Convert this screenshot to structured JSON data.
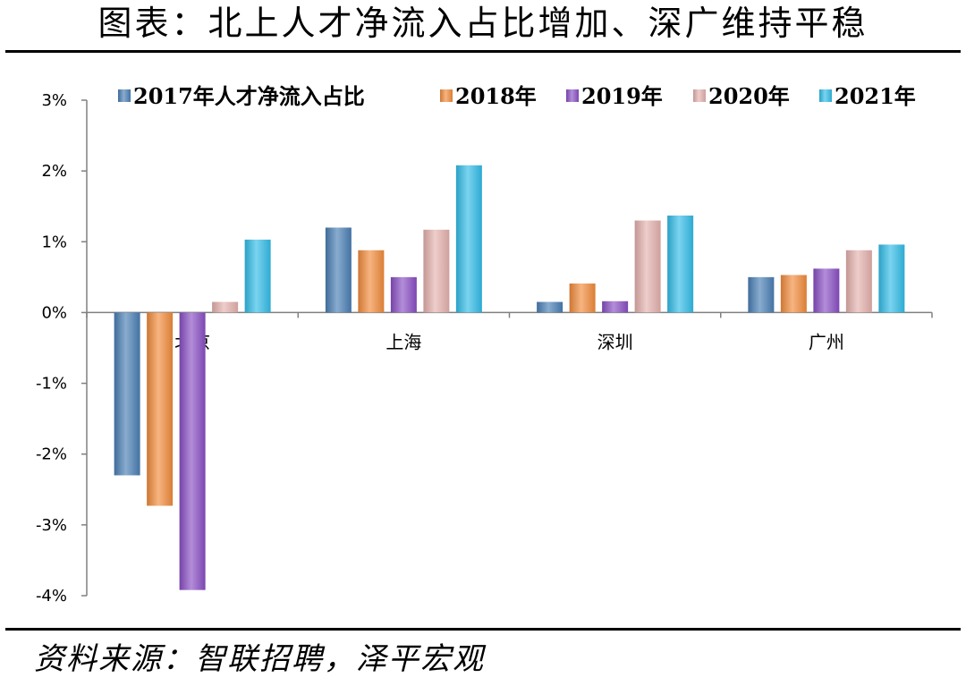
{
  "title": "图表：北上人才净流入占比增加、深广维持平稳",
  "source": "资料来源：智联招聘，泽平宏观",
  "chart_data": {
    "type": "bar",
    "categories": [
      "北京",
      "上海",
      "深圳",
      "广州"
    ],
    "series": [
      {
        "name": "2017年人才净流入占比",
        "values": [
          -2.3,
          1.2,
          0.15,
          0.5
        ],
        "color": "#4a7fb5"
      },
      {
        "name": "2018年",
        "values": [
          -2.73,
          0.88,
          0.41,
          0.53
        ],
        "color": "#f28c3c"
      },
      {
        "name": "2019年",
        "values": [
          -3.92,
          0.5,
          0.16,
          0.62
        ],
        "color": "#8a4fc4"
      },
      {
        "name": "2020年",
        "values": [
          0.15,
          1.17,
          1.3,
          0.88
        ],
        "color": "#e5b2ae"
      },
      {
        "name": "2021年",
        "values": [
          1.03,
          2.08,
          1.37,
          0.96
        ],
        "color": "#33bde8"
      }
    ],
    "ylim": [
      -4,
      3
    ],
    "yticks": [
      3,
      2,
      1,
      0,
      -1,
      -2,
      -3,
      -4
    ],
    "ytick_labels": [
      "3%",
      "2%",
      "1%",
      "0%",
      "-1%",
      "-2%",
      "-3%",
      "-4%"
    ],
    "legend_position": "top",
    "grid": false,
    "xlabel": "",
    "ylabel": ""
  }
}
